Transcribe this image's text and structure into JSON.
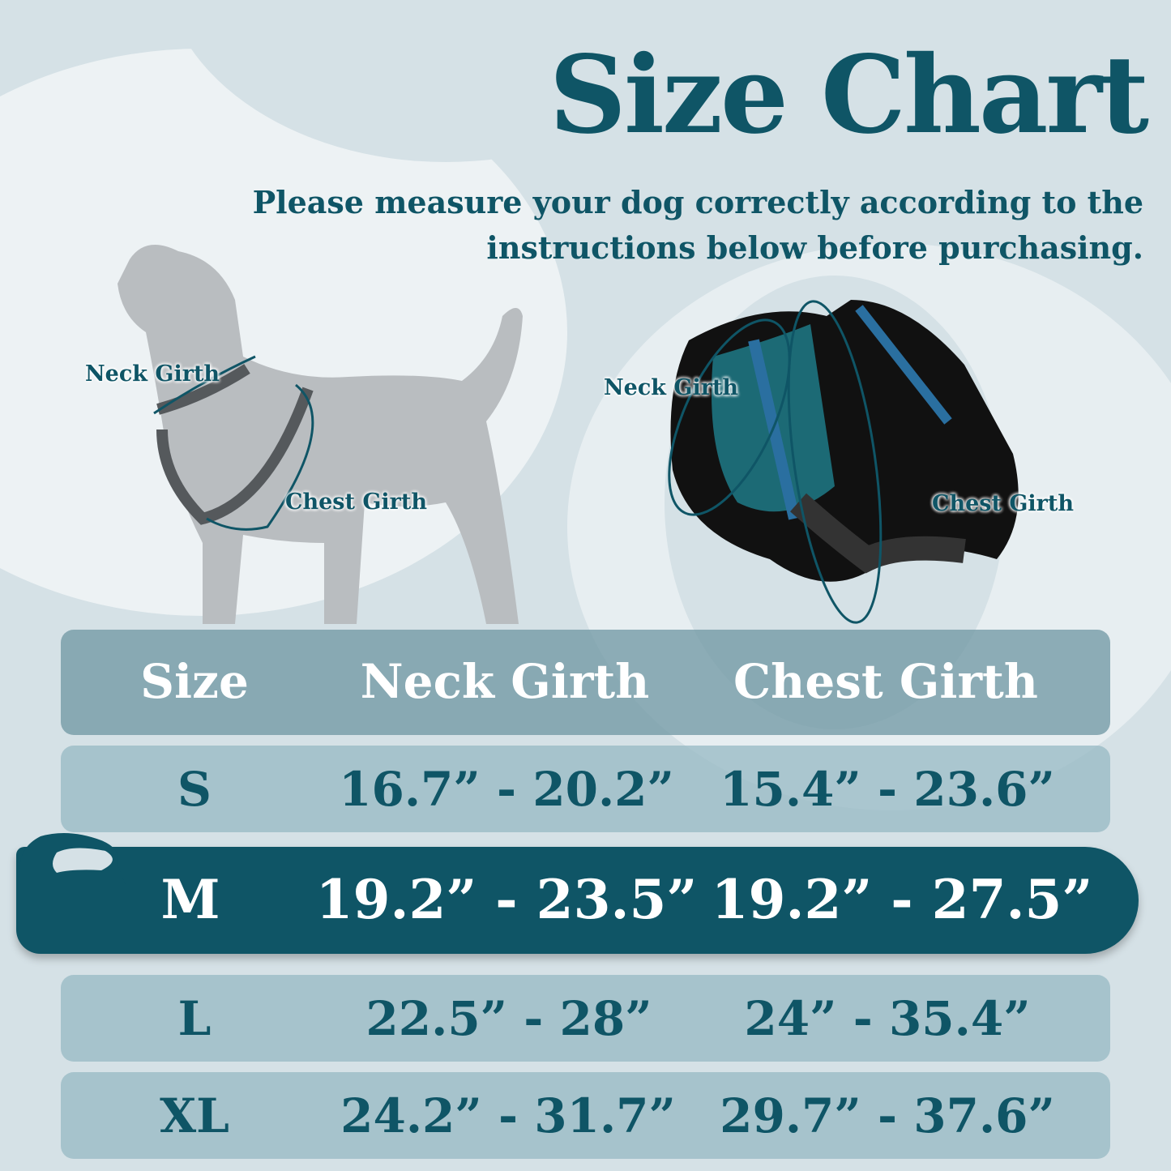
{
  "header": {
    "title": "Size Chart",
    "subtitle_line1": "Please measure your dog correctly according to the",
    "subtitle_line2": "instructions below before purchasing."
  },
  "dog_diagram": {
    "neck_label": "Neck Girth",
    "chest_label": "Chest Girth"
  },
  "harness_diagram": {
    "neck_label": "Neck Girth",
    "chest_label": "Chest Girth"
  },
  "table": {
    "columns": [
      "Size",
      "Neck Girth",
      "Chest Girth"
    ],
    "rows": [
      {
        "size": "S",
        "neck": "16.7” - 20.2”",
        "chest": "15.4” - 23.6”"
      },
      {
        "size": "M",
        "neck": "19.2” - 23.5”",
        "chest": "19.2” - 27.5”",
        "highlighted": true
      },
      {
        "size": "L",
        "neck": "22.5” - 28”",
        "chest": "24” - 35.4”"
      },
      {
        "size": "XL",
        "neck": "24.2” - 31.7”",
        "chest": "29.7” - 37.6”"
      }
    ]
  },
  "colors": {
    "accent": "#0f5566",
    "background": "#d5e1e6",
    "header_row": "#7fa0ab",
    "row": "#a7c2cb"
  }
}
